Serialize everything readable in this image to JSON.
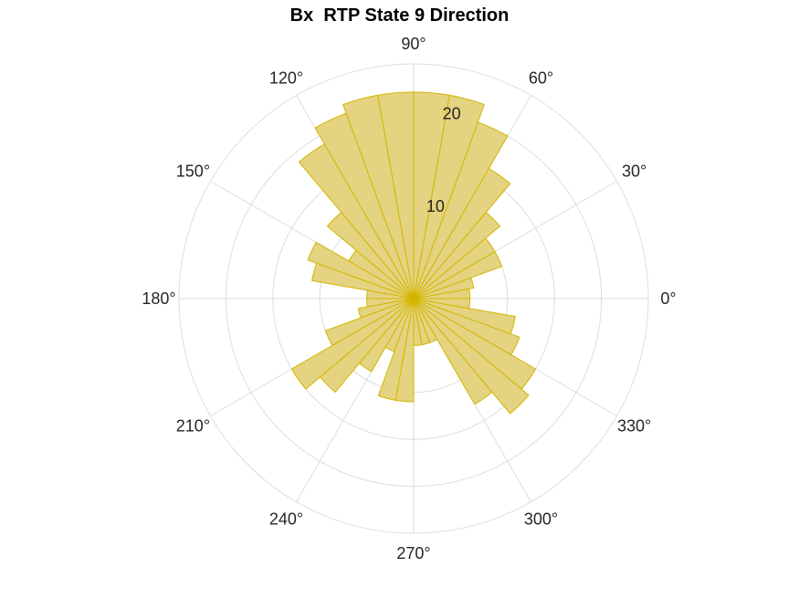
{
  "chart_data": {
    "type": "polar-histogram",
    "title": "Bx  RTP State 9 Direction",
    "angle_ticks": [
      {
        "deg": 0,
        "label": "0°"
      },
      {
        "deg": 30,
        "label": "30°"
      },
      {
        "deg": 60,
        "label": "60°"
      },
      {
        "deg": 90,
        "label": "90°"
      },
      {
        "deg": 120,
        "label": "120°"
      },
      {
        "deg": 150,
        "label": "150°"
      },
      {
        "deg": 180,
        "label": "180°"
      },
      {
        "deg": 210,
        "label": "210°"
      },
      {
        "deg": 240,
        "label": "240°"
      },
      {
        "deg": 270,
        "label": "270°"
      },
      {
        "deg": 300,
        "label": "300°"
      },
      {
        "deg": 330,
        "label": "330°"
      }
    ],
    "radial_ticks": [
      {
        "value": 10,
        "label": "10"
      },
      {
        "value": 20,
        "label": "20"
      }
    ],
    "rlim": [
      0,
      25
    ],
    "grid": true,
    "bin_width_deg": 10,
    "bins": [
      {
        "center": 5,
        "value": 6
      },
      {
        "center": 15,
        "value": 6.5
      },
      {
        "center": 25,
        "value": 10
      },
      {
        "center": 35,
        "value": 10
      },
      {
        "center": 45,
        "value": 12
      },
      {
        "center": 55,
        "value": 16
      },
      {
        "center": 65,
        "value": 20
      },
      {
        "center": 75,
        "value": 22
      },
      {
        "center": 85,
        "value": 22
      },
      {
        "center": 95,
        "value": 22
      },
      {
        "center": 105,
        "value": 22
      },
      {
        "center": 115,
        "value": 21
      },
      {
        "center": 125,
        "value": 19
      },
      {
        "center": 135,
        "value": 12
      },
      {
        "center": 145,
        "value": 8
      },
      {
        "center": 155,
        "value": 12
      },
      {
        "center": 165,
        "value": 11
      },
      {
        "center": 175,
        "value": 5
      },
      {
        "center": 185,
        "value": 5
      },
      {
        "center": 195,
        "value": 6
      },
      {
        "center": 205,
        "value": 10
      },
      {
        "center": 215,
        "value": 15
      },
      {
        "center": 225,
        "value": 13
      },
      {
        "center": 235,
        "value": 9
      },
      {
        "center": 245,
        "value": 6
      },
      {
        "center": 255,
        "value": 11
      },
      {
        "center": 265,
        "value": 11
      },
      {
        "center": 275,
        "value": 5
      },
      {
        "center": 285,
        "value": 5
      },
      {
        "center": 295,
        "value": 5
      },
      {
        "center": 305,
        "value": 13
      },
      {
        "center": 315,
        "value": 16
      },
      {
        "center": 325,
        "value": 15
      },
      {
        "center": 335,
        "value": 12
      },
      {
        "center": 345,
        "value": 11
      },
      {
        "center": 355,
        "value": 6
      }
    ],
    "colors": {
      "bar_fill": "#e3d17a",
      "bar_edge": "#d4b700",
      "grid": "#dedede",
      "center": "#d4b300"
    }
  }
}
